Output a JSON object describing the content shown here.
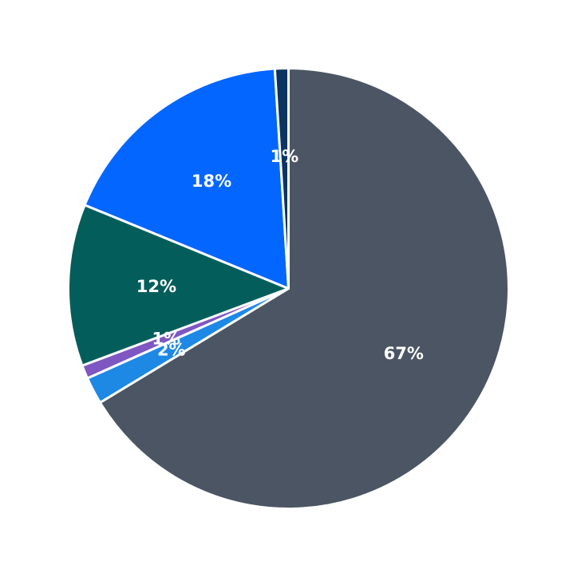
{
  "chart_data": {
    "type": "pie",
    "title": "",
    "start": "top",
    "direction": "clockwise",
    "slices": [
      {
        "value": 67,
        "label": "67%",
        "color": "#4B5563"
      },
      {
        "value": 2,
        "label": "2%",
        "color": "#1E88E5"
      },
      {
        "value": 1,
        "label": "1%",
        "color": "#7E57C2"
      },
      {
        "value": 12,
        "label": "12%",
        "color": "#035E5B"
      },
      {
        "value": 18,
        "label": "18%",
        "color": "#0366FF"
      },
      {
        "value": 1,
        "label": "1%",
        "color": "#0B3460"
      }
    ]
  }
}
